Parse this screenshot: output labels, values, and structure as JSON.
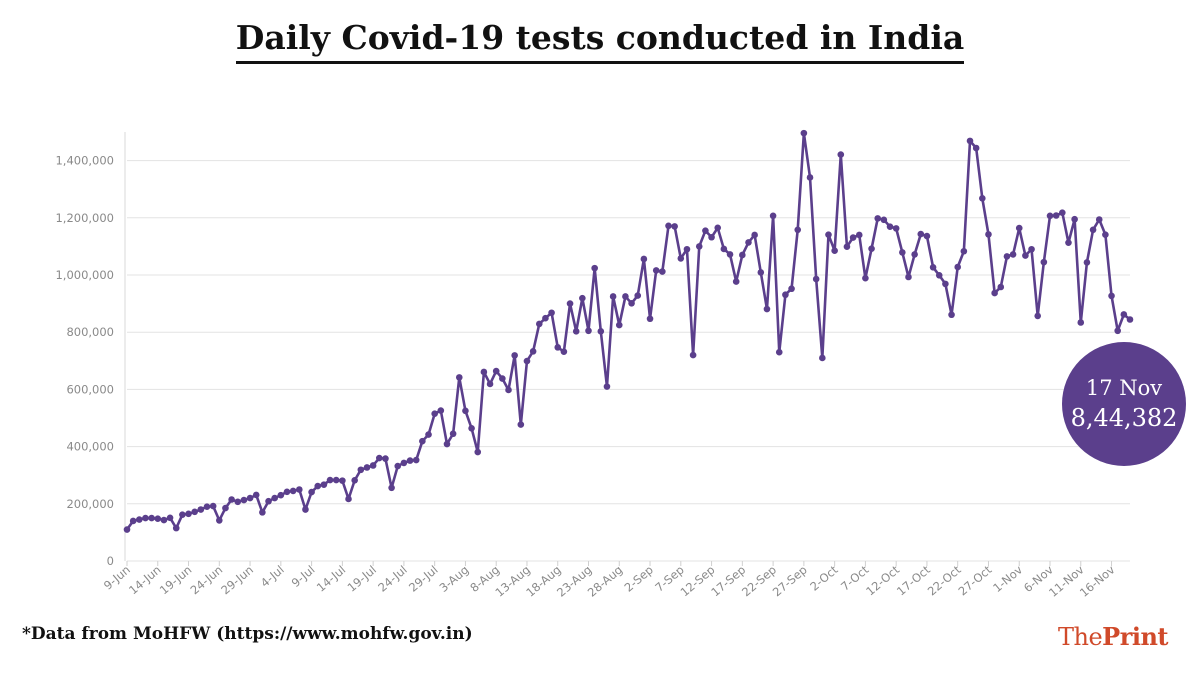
{
  "title": "Daily Covid-19 tests conducted in India",
  "source_note": "*Data from MoHFW (https://www.mohfw.gov.in)",
  "logo": {
    "part1": "The",
    "part2": "Print"
  },
  "callout": {
    "date": "17 Nov",
    "value": "8,44,382"
  },
  "colors": {
    "line": "#5b3f8c",
    "badge": "#5b3f8c",
    "logo": "#d04a2a"
  },
  "chart_data": {
    "type": "line",
    "title": "Daily Covid-19 tests conducted in India",
    "xlabel": "",
    "ylabel": "",
    "ylim": [
      0,
      1500000
    ],
    "grid": true,
    "yticks": [
      0,
      200000,
      400000,
      600000,
      800000,
      1000000,
      1200000,
      1400000
    ],
    "ytick_labels": [
      "0",
      "200,000",
      "400,000",
      "600,000",
      "800,000",
      "1,000,000",
      "1,200,000",
      "1,400,000"
    ],
    "xtick_labels": [
      "9-Jun",
      "14-Jun",
      "19-Jun",
      "24-Jun",
      "29-Jun",
      "4-Jul",
      "9-Jul",
      "14-Jul",
      "19-Jul",
      "24-Jul",
      "29-Jul",
      "3-Aug",
      "8-Aug",
      "13-Aug",
      "18-Aug",
      "23-Aug",
      "28-Aug",
      "2-Sep",
      "7-Sep",
      "12-Sep",
      "17-Sep",
      "22-Sep",
      "27-Sep",
      "2-Oct",
      "7-Oct",
      "12-Oct",
      "17-Oct",
      "22-Oct",
      "27-Oct",
      "1-Nov",
      "6-Nov",
      "11-Nov",
      "16-Nov"
    ],
    "x_start": "9-Jun",
    "x_end": "17-Nov",
    "series": [
      {
        "values": [
          110000,
          140000,
          145000,
          150000,
          150000,
          148000,
          143000,
          151000,
          115000,
          162000,
          165000,
          172000,
          180000,
          190000,
          192000,
          142000,
          185000,
          215000,
          207000,
          213000,
          220000,
          231000,
          170000,
          209000,
          220000,
          230000,
          242000,
          245000,
          250000,
          180000,
          241000,
          262000,
          267000,
          283000,
          283000,
          281000,
          217000,
          282000,
          319000,
          327000,
          334000,
          360000,
          358000,
          256000,
          332000,
          343000,
          351000,
          353000,
          419000,
          442000,
          515000,
          526000,
          409000,
          445000,
          642000,
          525000,
          464000,
          381000,
          661000,
          619000,
          664000,
          638000,
          598000,
          719000,
          477000,
          699000,
          733000,
          829000,
          849000,
          868000,
          747000,
          732000,
          900000,
          803000,
          919000,
          805000,
          1024000,
          803000,
          610000,
          925000,
          825000,
          925000,
          901000,
          928000,
          1056000,
          847000,
          1016000,
          1012000,
          1172000,
          1170000,
          1058000,
          1090000,
          720000,
          1100000,
          1155000,
          1132000,
          1165000,
          1091000,
          1072000,
          977000,
          1070000,
          1114000,
          1140000,
          1009000,
          881000,
          1207000,
          730000,
          931000,
          952000,
          1158000,
          1496000,
          1341000,
          986000,
          710000,
          1141000,
          1085000,
          1421000,
          1099000,
          1131000,
          1140000,
          989000,
          1092000,
          1198000,
          1193000,
          1169000,
          1163000,
          1079000,
          993000,
          1072000,
          1143000,
          1136000,
          1027000,
          999000,
          969000,
          861000,
          1028000,
          1083000,
          1469000,
          1444000,
          1268000,
          1142000,
          937000,
          958000,
          1065000,
          1072000,
          1164000,
          1068000,
          1090000,
          857000,
          1045000,
          1207000,
          1208000,
          1218000,
          1113000,
          1195000,
          834000,
          1044000,
          1158000,
          1194000,
          1141000,
          927000,
          805000,
          862000,
          844382
        ]
      }
    ]
  }
}
